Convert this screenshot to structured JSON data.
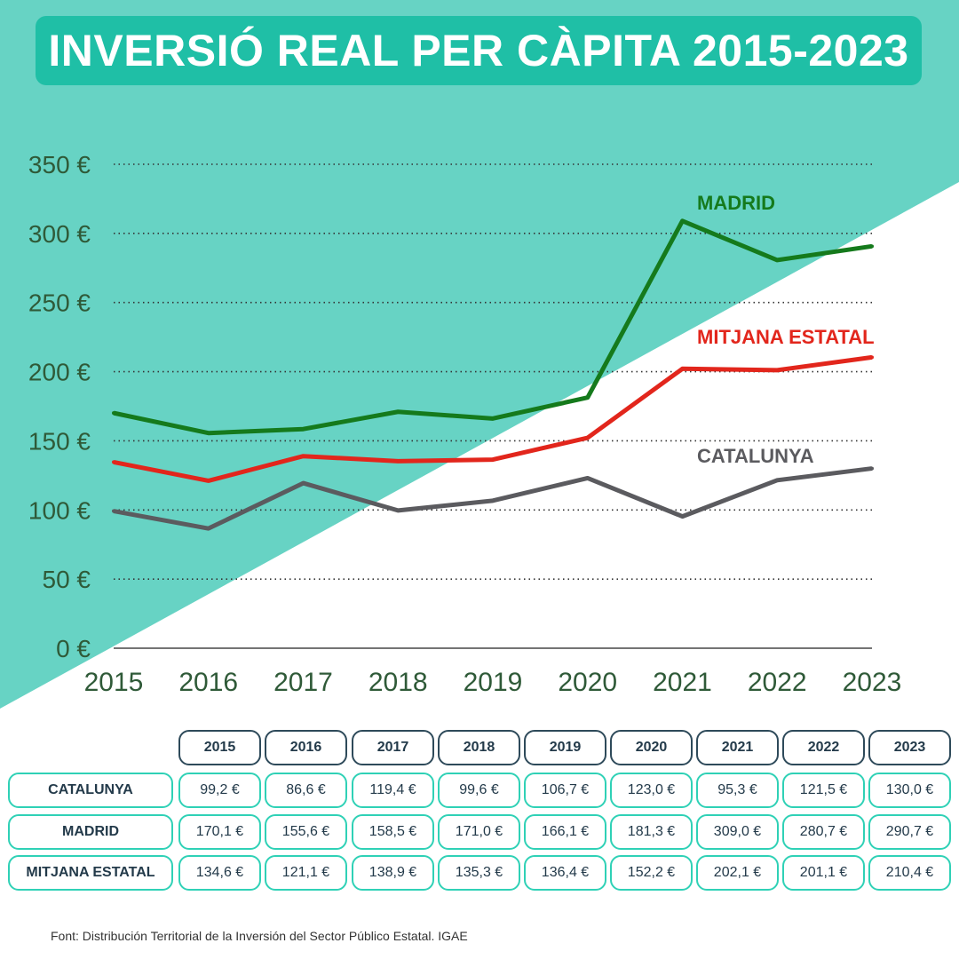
{
  "title": "INVERSIÓ REAL PER CÀPITA 2015-2023",
  "colors": {
    "background_teal": "#67d3c4",
    "title_box": "#1fbfa6",
    "madrid": "#157a1c",
    "mitjana_estatal": "#e2261c",
    "catalunya": "#5b5b5f",
    "axis_text": "#2f5a38",
    "table_border": "#2fd1b6",
    "table_header_border": "#2e4a5a"
  },
  "chart_data": {
    "type": "line",
    "title": "INVERSIÓ REAL PER CÀPITA 2015-2023",
    "x": [
      "2015",
      "2016",
      "2017",
      "2018",
      "2019",
      "2020",
      "2021",
      "2022",
      "2023"
    ],
    "y_ticks": [
      "0 €",
      "50 €",
      "100 €",
      "150 €",
      "200 €",
      "250 €",
      "300 €",
      "350 €"
    ],
    "ylim": [
      0,
      350
    ],
    "grid": "horizontal dotted",
    "series": [
      {
        "name": "MADRID",
        "values": [
          170.1,
          155.6,
          158.5,
          171.0,
          166.1,
          181.3,
          309.0,
          280.7,
          290.7
        ]
      },
      {
        "name": "MITJANA ESTATAL",
        "values": [
          134.6,
          121.1,
          138.9,
          135.3,
          136.4,
          152.2,
          202.1,
          201.1,
          210.4
        ]
      },
      {
        "name": "CATALUNYA",
        "values": [
          99.2,
          86.6,
          119.4,
          99.6,
          106.7,
          123.0,
          95.3,
          121.5,
          130.0
        ]
      }
    ]
  },
  "table": {
    "years": [
      "2015",
      "2016",
      "2017",
      "2018",
      "2019",
      "2020",
      "2021",
      "2022",
      "2023"
    ],
    "rows": [
      {
        "label": "CATALUNYA",
        "values": [
          "99,2 €",
          "86,6 €",
          "119,4 €",
          "99,6 €",
          "106,7 €",
          "123,0 €",
          "95,3 €",
          "121,5 €",
          "130,0 €"
        ]
      },
      {
        "label": "MADRID",
        "values": [
          "170,1 €",
          "155,6 €",
          "158,5 €",
          "171,0 €",
          "166,1 €",
          "181,3 €",
          "309,0 €",
          "280,7 €",
          "290,7 €"
        ]
      },
      {
        "label": "MITJANA ESTATAL",
        "values": [
          "134,6 €",
          "121,1 €",
          "138,9 €",
          "135,3 €",
          "136,4 €",
          "152,2 €",
          "202,1 €",
          "201,1 €",
          "210,4 €"
        ]
      }
    ]
  },
  "source": "Font: Distribución Territorial de la Inversión del Sector Público Estatal. IGAE"
}
